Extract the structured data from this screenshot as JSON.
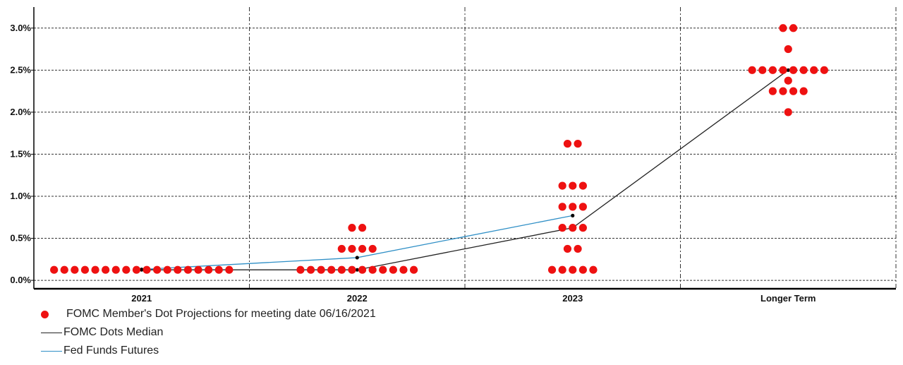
{
  "chart_data": {
    "type": "scatter",
    "title": "",
    "xlabel": "",
    "ylabel": "",
    "categories": [
      "2021",
      "2022",
      "2023",
      "Longer Term"
    ],
    "ylim": [
      -0.1,
      3.25
    ],
    "yticks": [
      {
        "value": 0.0,
        "label": "0.0%"
      },
      {
        "value": 0.5,
        "label": "0.5%"
      },
      {
        "value": 1.0,
        "label": "1.0%"
      },
      {
        "value": 1.5,
        "label": "1.5%"
      },
      {
        "value": 2.0,
        "label": "2.0%"
      },
      {
        "value": 2.5,
        "label": "2.5%"
      },
      {
        "value": 3.0,
        "label": "3.0%"
      }
    ],
    "grid": true,
    "legend_position": "bottom-left",
    "dots": [
      {
        "category": "2021",
        "rate": 0.125,
        "count": 18
      },
      {
        "category": "2022",
        "rate": 0.625,
        "count": 2
      },
      {
        "category": "2022",
        "rate": 0.375,
        "count": 4
      },
      {
        "category": "2022",
        "rate": 0.125,
        "count": 12
      },
      {
        "category": "2023",
        "rate": 1.625,
        "count": 2
      },
      {
        "category": "2023",
        "rate": 1.125,
        "count": 3
      },
      {
        "category": "2023",
        "rate": 0.875,
        "count": 3
      },
      {
        "category": "2023",
        "rate": 0.625,
        "count": 3
      },
      {
        "category": "2023",
        "rate": 0.375,
        "count": 2
      },
      {
        "category": "2023",
        "rate": 0.125,
        "count": 5
      },
      {
        "category": "Longer Term",
        "rate": 3.0,
        "count": 2
      },
      {
        "category": "Longer Term",
        "rate": 2.75,
        "count": 1
      },
      {
        "category": "Longer Term",
        "rate": 2.375,
        "count": 1
      },
      {
        "category": "Longer Term",
        "rate": 2.5,
        "count": 8
      },
      {
        "category": "Longer Term",
        "rate": 2.25,
        "count": 4
      },
      {
        "category": "Longer Term",
        "rate": 2.0,
        "count": 1
      }
    ],
    "series": [
      {
        "name": "FOMC Dots Median",
        "color": "#222222",
        "points": [
          {
            "x": "2021",
            "y": 0.125
          },
          {
            "x": "2022",
            "y": 0.125
          },
          {
            "x": "2023",
            "y": 0.625
          },
          {
            "x": "Longer Term",
            "y": 2.5
          }
        ]
      },
      {
        "name": "Fed Funds Futures",
        "color": "#2f8fc6",
        "points": [
          {
            "x": "2021",
            "y": 0.13
          },
          {
            "x": "2022",
            "y": 0.27
          },
          {
            "x": "2023",
            "y": 0.77
          }
        ]
      }
    ],
    "colors": {
      "dots": "#ee1111",
      "grid": "#333333",
      "axis": "#000000"
    }
  },
  "legend": {
    "dots_label": "FOMC Member's Dot Projections for meeting date 06/16/2021",
    "median_label": "FOMC Dots Median",
    "futures_label": "Fed Funds Futures"
  }
}
